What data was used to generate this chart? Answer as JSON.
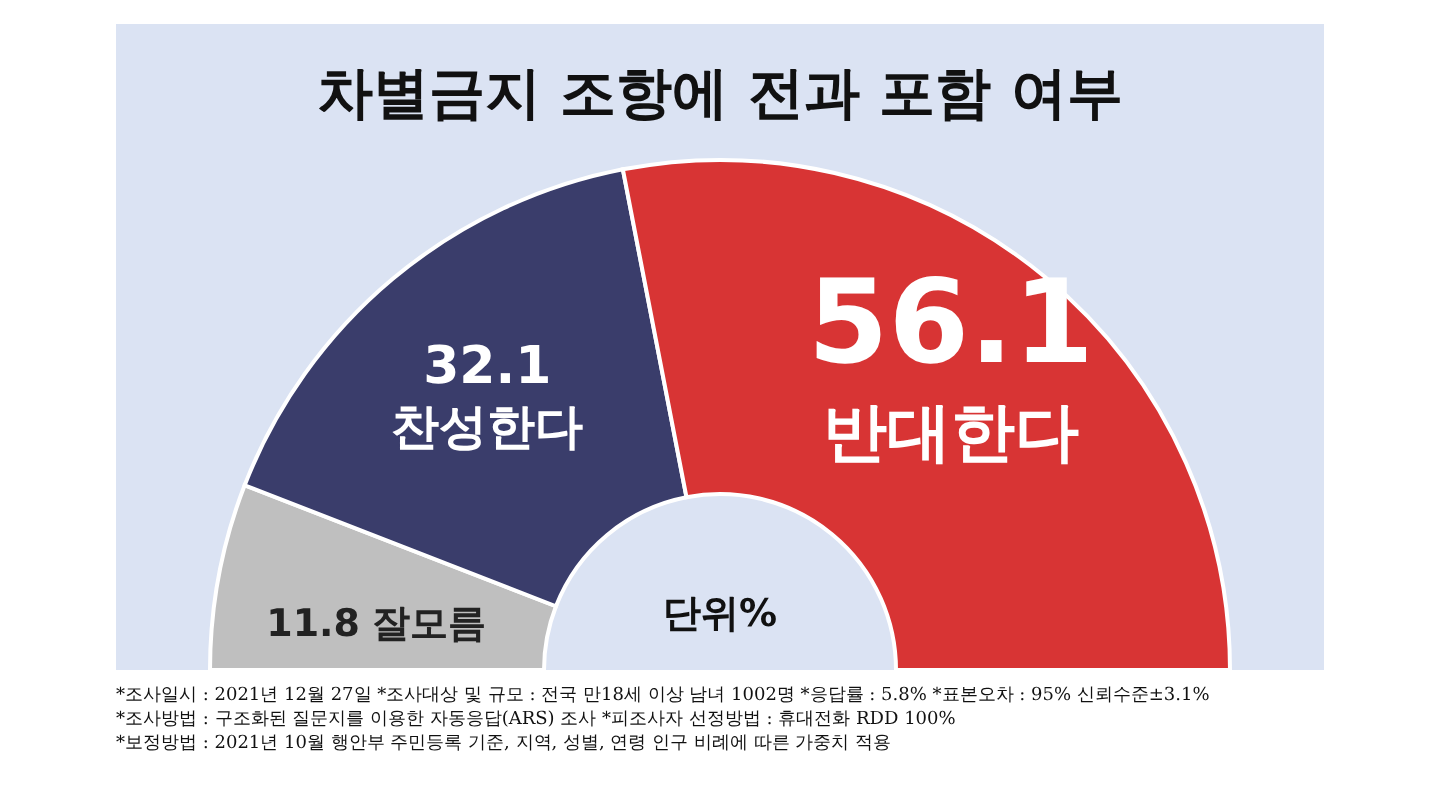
{
  "chart_data": {
    "type": "donut",
    "title": "차별금지 조항에 전과 포함 여부",
    "categories": [
      "잘모름",
      "찬성한다",
      "반대한다"
    ],
    "values": [
      11.8,
      32.1,
      56.1
    ],
    "colors": [
      "#bfbfbf",
      "#3a3d6b",
      "#d83434"
    ],
    "data_labels": true,
    "annotations": [
      "단위%",
      "*조사일시 : 2021년 12월 27일  *조사대상 및 규모 : 전국 만18세 이상 남녀 1002명 *응답률 : 5.8%   *표본오차 : 95% 신뢰수준±3.1%",
      "*조사방법 : 구조화된 질문지를 이용한 자동응답(ARS) 조사 *피조사자 선정방법 : 휴대전화 RDD 100%",
      "*보정방법 : 2021년 10월 행안부 주민등록 기준, 지역, 성별, 연령 인구 비례에 따른 가중치 적용"
    ]
  }
}
